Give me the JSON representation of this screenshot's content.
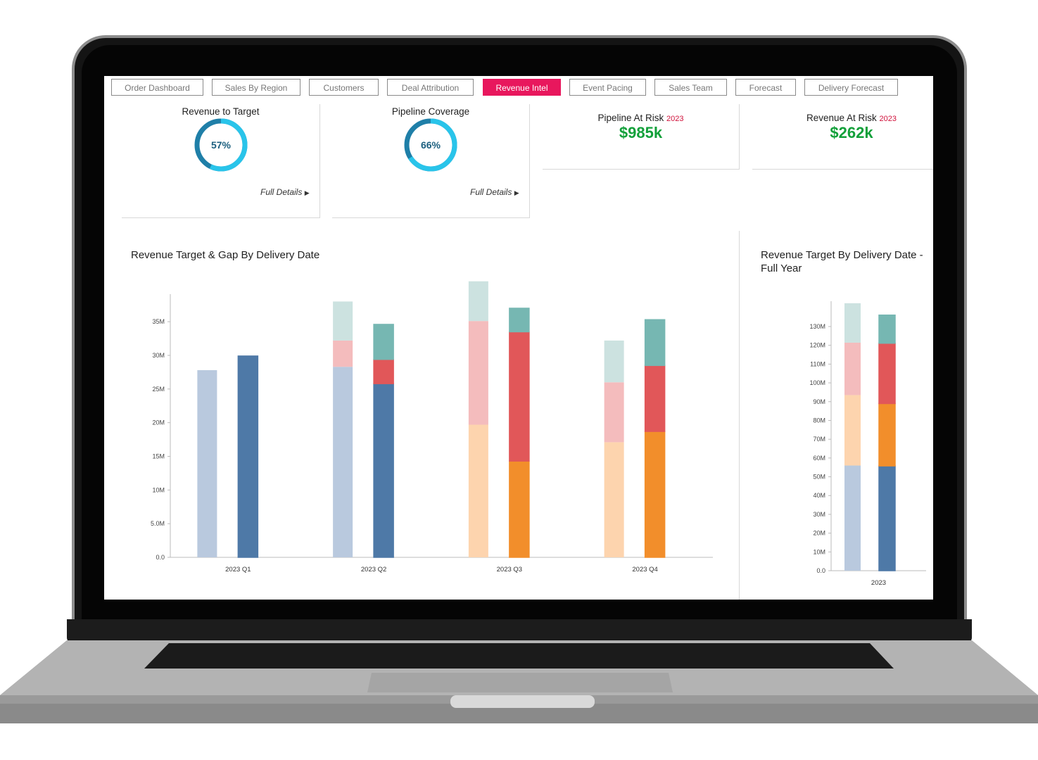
{
  "tabs": [
    {
      "label": "Order Dashboard",
      "active": false
    },
    {
      "label": "Sales By Region",
      "active": false
    },
    {
      "label": "Customers",
      "active": false
    },
    {
      "label": "Deal Attribution",
      "active": false
    },
    {
      "label": "Revenue Intel",
      "active": true
    },
    {
      "label": "Event Pacing",
      "active": false
    },
    {
      "label": "Sales Team",
      "active": false
    },
    {
      "label": "Forecast",
      "active": false
    },
    {
      "label": "Delivery Forecast",
      "active": false
    }
  ],
  "kpis": {
    "revenue_to_target": {
      "title": "Revenue to Target",
      "value_label": "57%",
      "value": 57,
      "details": "Full Details"
    },
    "pipeline_coverage": {
      "title": "Pipeline Coverage",
      "value_label": "66%",
      "value": 66,
      "details": "Full Details"
    },
    "pipeline_at_risk": {
      "title": "Pipeline At Risk",
      "year": "2023",
      "value": "$985k"
    },
    "revenue_at_risk": {
      "title": "Revenue At Risk",
      "year": "2023",
      "value": "$262k"
    }
  },
  "colors": {
    "accent": "#e8175d",
    "kpi_green": "#12a03a",
    "gauge_dark": "#1f7fa8",
    "gauge_light": "#29c4ea",
    "blue_dark": "#4e79a7",
    "blue_light": "#b9c9de",
    "orange_dark": "#f28e2b",
    "orange_light": "#fdd4ae",
    "red_dark": "#e15759",
    "red_light": "#f4bcbd",
    "teal_dark": "#76b7b2",
    "teal_light": "#cce2e0"
  },
  "chart_data": [
    {
      "type": "bar",
      "title": "Revenue Target & Gap By Delivery Date",
      "categories": [
        "2023 Q1",
        "2023 Q2",
        "2023 Q3",
        "2023 Q4"
      ],
      "ylim": [
        0,
        37
      ],
      "yticks": [
        "0.0",
        "5.0M",
        "10M",
        "15M",
        "20M",
        "25M",
        "30M",
        "35M"
      ],
      "bar_pairs": [
        {
          "category": "2023 Q1",
          "light": [
            {
              "value": 27.8,
              "color": "blue_light"
            }
          ],
          "dark": [
            {
              "value": 29.9,
              "color": "blue_dark"
            }
          ]
        },
        {
          "category": "2023 Q2",
          "light": [
            {
              "value": 28.3,
              "color": "blue_light"
            },
            {
              "value": 3.9,
              "color": "red_light"
            },
            {
              "value": 5.8,
              "color": "teal_light"
            }
          ],
          "dark": [
            {
              "value": 25.8,
              "color": "blue_dark"
            },
            {
              "value": 3.6,
              "color": "red_dark"
            },
            {
              "value": 5.2,
              "color": "teal_dark"
            }
          ]
        },
        {
          "category": "2023 Q3",
          "light": [
            {
              "value": 19.7,
              "color": "orange_light"
            },
            {
              "value": 15.4,
              "color": "red_light"
            },
            {
              "value": 5.9,
              "color": "teal_light"
            }
          ],
          "dark": [
            {
              "value": 14.3,
              "color": "orange_dark"
            },
            {
              "value": 19.2,
              "color": "red_dark"
            },
            {
              "value": 3.5,
              "color": "teal_dark"
            }
          ]
        },
        {
          "category": "2023 Q4",
          "light": [
            {
              "value": 17.1,
              "color": "orange_light"
            },
            {
              "value": 8.9,
              "color": "red_light"
            },
            {
              "value": 6.2,
              "color": "teal_light"
            }
          ],
          "dark": [
            {
              "value": 18.7,
              "color": "orange_dark"
            },
            {
              "value": 9.8,
              "color": "red_dark"
            },
            {
              "value": 6.8,
              "color": "teal_dark"
            }
          ]
        }
      ]
    },
    {
      "type": "bar",
      "title": "Revenue Target By Delivery Date - Full Year",
      "categories": [
        "2023"
      ],
      "ylim": [
        0,
        136
      ],
      "yticks": [
        "0.0",
        "10M",
        "20M",
        "30M",
        "40M",
        "50M",
        "60M",
        "70M",
        "80M",
        "90M",
        "100M",
        "110M",
        "120M",
        "130M"
      ],
      "bar_pairs": [
        {
          "category": "2023",
          "light": [
            {
              "value": 56,
              "color": "blue_light"
            },
            {
              "value": 37.5,
              "color": "orange_light"
            },
            {
              "value": 27.9,
              "color": "red_light"
            },
            {
              "value": 21,
              "color": "teal_light"
            }
          ],
          "dark": [
            {
              "value": 55.8,
              "color": "blue_dark"
            },
            {
              "value": 33.2,
              "color": "orange_dark"
            },
            {
              "value": 32.1,
              "color": "red_dark"
            },
            {
              "value": 15,
              "color": "teal_dark"
            }
          ]
        }
      ]
    }
  ]
}
